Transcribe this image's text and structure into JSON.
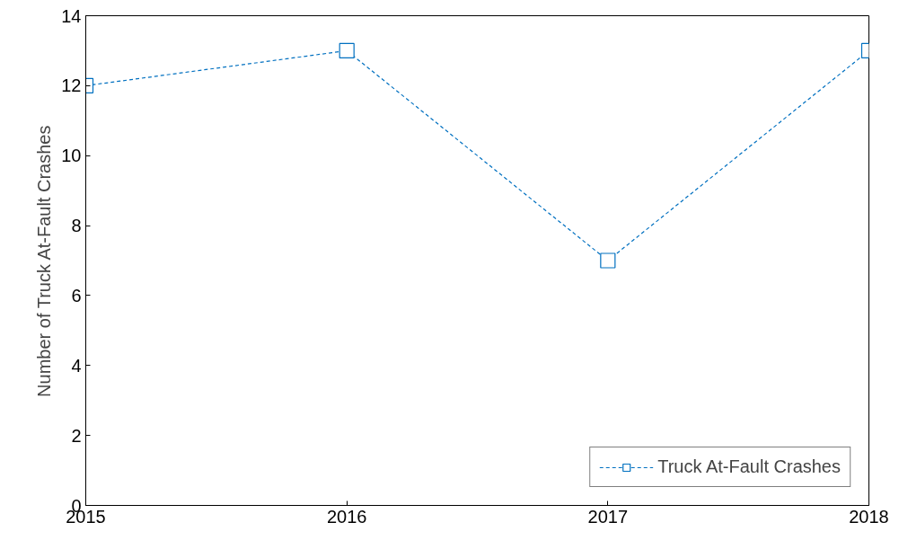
{
  "chart_data": {
    "type": "line",
    "ylabel": "Number of Truck At-Fault Crashes",
    "x": [
      2015,
      2016,
      2017,
      2018
    ],
    "series": [
      {
        "name": "Truck At-Fault Crashes",
        "color": "#0070c0",
        "values": [
          12,
          13,
          7,
          13
        ]
      }
    ],
    "xlim": [
      2015,
      2018
    ],
    "xticks": [
      2015,
      2016,
      2017,
      2018
    ],
    "ylim": [
      0,
      14
    ],
    "yticks": [
      0,
      2,
      4,
      6,
      8,
      10,
      12,
      14
    ],
    "grid": false,
    "legend": "bottom right",
    "marker": "square",
    "line_style": "dashed"
  }
}
